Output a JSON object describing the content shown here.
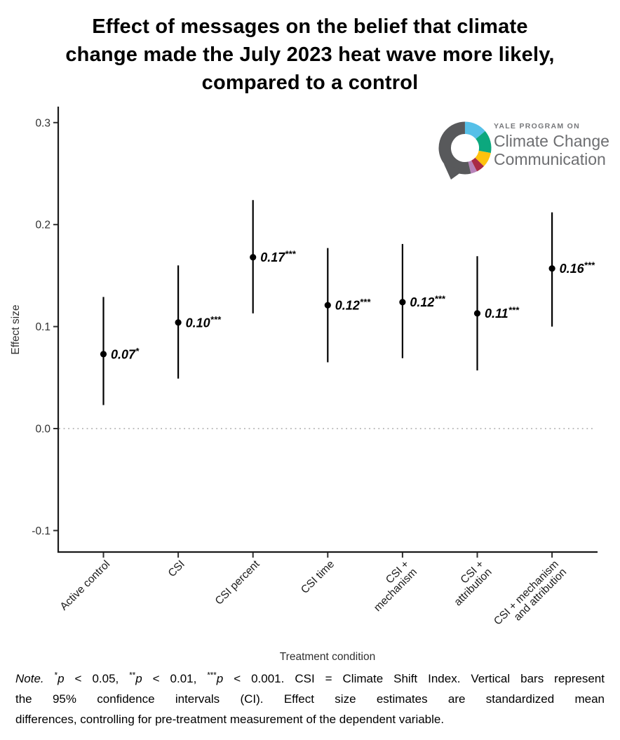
{
  "title": {
    "lines": [
      "Effect of messages on the belief that climate",
      "change made the July 2023 heat wave more likely,",
      "compared to a control"
    ]
  },
  "logo": {
    "tagline": "YALE PROGRAM ON",
    "name_line1": "Climate Change",
    "name_line2": "Communication",
    "text_color": "#6d6e71",
    "ring_segments": [
      {
        "name": "sky-blue",
        "color": "#56c0e8",
        "start": 0,
        "end": 50
      },
      {
        "name": "green",
        "color": "#0ca87e",
        "start": 50,
        "end": 101
      },
      {
        "name": "yellow",
        "color": "#ffc20e",
        "start": 101,
        "end": 134
      },
      {
        "name": "crimson",
        "color": "#a92b45",
        "start": 134,
        "end": 153
      },
      {
        "name": "lilac",
        "color": "#b783b9",
        "start": 153,
        "end": 167
      },
      {
        "name": "gray",
        "color": "#58595b",
        "start": 167,
        "end": 360
      }
    ]
  },
  "chart_data": {
    "type": "scatter",
    "title": "Effect of messages on the belief that climate change made the July 2023 heat wave more likely, compared to a control",
    "xlabel": "Treatment condition",
    "ylabel": "Effect size",
    "ylim": [
      -0.13,
      0.32
    ],
    "yticks": [
      0.3,
      0.2,
      0.1,
      0.0,
      -0.1
    ],
    "ytick_labels": [
      "0.3",
      "0.2",
      "0.1",
      "0.0",
      "-0.1"
    ],
    "grid": false,
    "zero_line": {
      "y": 0,
      "style": "dotted",
      "color": "#b3b3b3"
    },
    "ci_level": "95%",
    "point_color": "#000000",
    "points": [
      {
        "category_lines": [
          "Active control"
        ],
        "estimate": 0.073,
        "ci_low": 0.023,
        "ci_high": 0.129,
        "label": "0.07",
        "stars": "*"
      },
      {
        "category_lines": [
          "CSI"
        ],
        "estimate": 0.104,
        "ci_low": 0.049,
        "ci_high": 0.16,
        "label": "0.10",
        "stars": "***"
      },
      {
        "category_lines": [
          "CSI percent"
        ],
        "estimate": 0.168,
        "ci_low": 0.113,
        "ci_high": 0.224,
        "label": "0.17",
        "stars": "***"
      },
      {
        "category_lines": [
          "CSI time"
        ],
        "estimate": 0.121,
        "ci_low": 0.065,
        "ci_high": 0.177,
        "label": "0.12",
        "stars": "***"
      },
      {
        "category_lines": [
          "CSI +",
          "mechanism"
        ],
        "estimate": 0.124,
        "ci_low": 0.069,
        "ci_high": 0.181,
        "label": "0.12",
        "stars": "***"
      },
      {
        "category_lines": [
          "CSI +",
          "attribution"
        ],
        "estimate": 0.113,
        "ci_low": 0.057,
        "ci_high": 0.169,
        "label": "0.11",
        "stars": "***"
      },
      {
        "category_lines": [
          "CSI + mechanism",
          "and attribution"
        ],
        "estimate": 0.157,
        "ci_low": 0.1,
        "ci_high": 0.212,
        "label": "0.16",
        "stars": "***"
      }
    ]
  },
  "note": {
    "lines": [
      {
        "justify": true,
        "segments": [
          {
            "t": "Note.",
            "s": "i"
          },
          {
            "t": " "
          },
          {
            "t": "*",
            "s": "sup"
          },
          {
            "t": "p",
            "s": "i"
          },
          {
            "t": " < 0.05, "
          },
          {
            "t": "**",
            "s": "sup"
          },
          {
            "t": "p",
            "s": "i"
          },
          {
            "t": " < 0.01, "
          },
          {
            "t": "***",
            "s": "sup"
          },
          {
            "t": "p",
            "s": "i"
          },
          {
            "t": " < 0.001. CSI = Climate Shift Index. Vertical bars represent"
          }
        ]
      },
      {
        "justify": true,
        "segments": [
          {
            "t": "the 95% confidence intervals (CI). Effect size estimates are standardized mean"
          }
        ]
      },
      {
        "justify": false,
        "segments": [
          {
            "t": "differences, controlling for pre-treatment measurement of the dependent variable."
          }
        ]
      }
    ]
  }
}
